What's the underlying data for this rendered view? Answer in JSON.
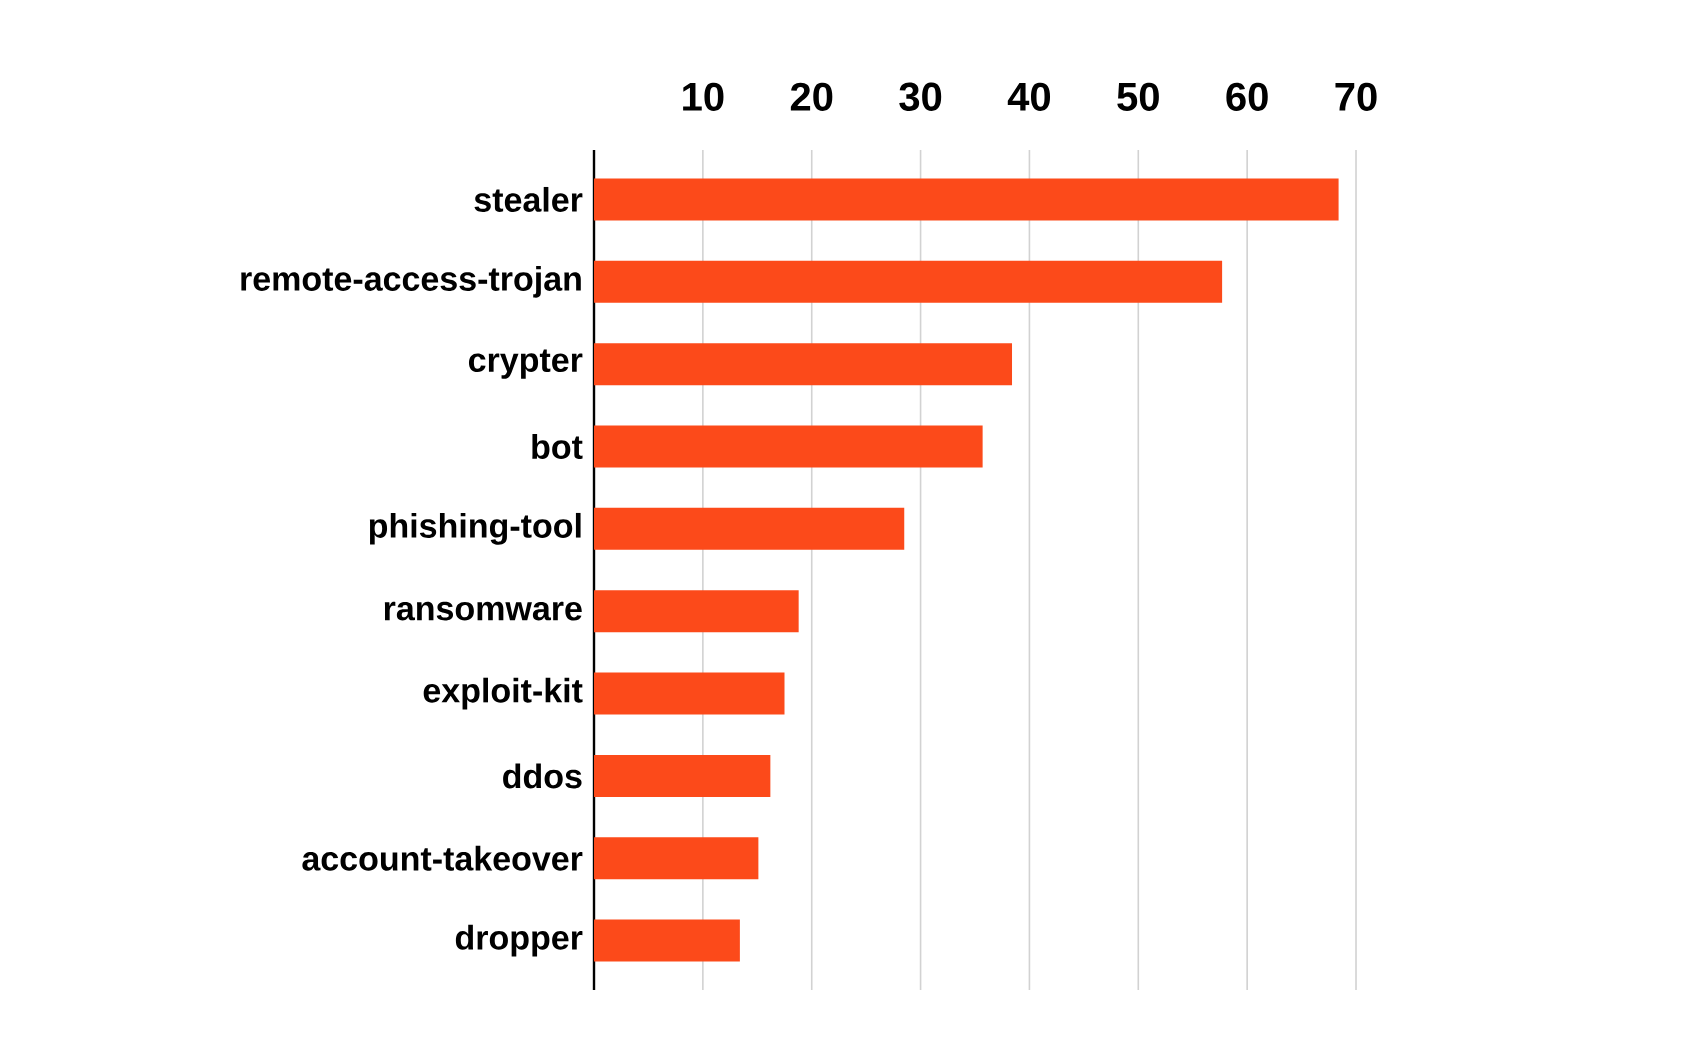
{
  "chart_data": {
    "type": "bar",
    "orientation": "horizontal",
    "categories": [
      "stealer",
      "remote-access-trojan",
      "crypter",
      "bot",
      "phishing-tool",
      "ransomware",
      "exploit-kit",
      "ddos",
      "account-takeover",
      "dropper"
    ],
    "values": [
      68.4,
      57.7,
      38.4,
      35.7,
      28.5,
      18.8,
      17.5,
      16.2,
      15.1,
      13.4
    ],
    "color": "#fc4a1a",
    "xlim": [
      0,
      70
    ],
    "xticks": [
      10,
      20,
      30,
      40,
      50,
      60,
      70
    ],
    "grid": "x"
  }
}
